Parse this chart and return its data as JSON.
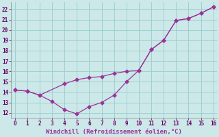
{
  "xlabel": "Windchill (Refroidissement éolien,°C)",
  "background_color": "#cce8e8",
  "grid_color": "#99cccc",
  "line_color": "#993399",
  "line1_x": [
    0,
    1,
    2,
    3,
    4,
    5,
    6,
    7,
    8,
    9,
    10,
    11,
    12,
    13,
    14,
    15,
    16
  ],
  "line1_y": [
    14.2,
    14.1,
    13.7,
    13.1,
    12.3,
    11.9,
    12.6,
    13.0,
    13.7,
    15.0,
    16.1,
    18.1,
    19.0,
    20.9,
    21.1,
    21.6,
    22.2
  ],
  "line2_x": [
    0,
    1,
    2,
    4,
    5,
    6,
    7,
    8,
    9,
    10,
    11,
    12,
    13,
    14,
    15,
    16
  ],
  "line2_y": [
    14.2,
    14.1,
    13.7,
    14.8,
    15.2,
    15.4,
    15.5,
    15.8,
    16.0,
    16.1,
    18.1,
    19.0,
    20.9,
    21.1,
    21.6,
    22.2
  ],
  "xlim": [
    -0.3,
    16.3
  ],
  "ylim": [
    11.5,
    22.7
  ],
  "xticks": [
    0,
    1,
    2,
    3,
    4,
    5,
    6,
    7,
    8,
    9,
    10,
    11,
    12,
    13,
    14,
    15,
    16
  ],
  "yticks": [
    12,
    13,
    14,
    15,
    16,
    17,
    18,
    19,
    20,
    21,
    22
  ],
  "tick_fontsize": 5.5,
  "xlabel_fontsize": 6.5
}
